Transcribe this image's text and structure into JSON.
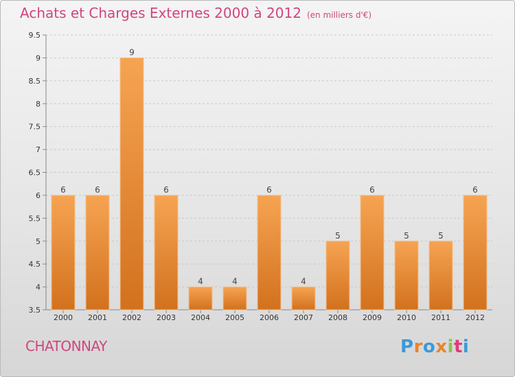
{
  "chart_data": {
    "type": "bar",
    "title": "Achats et Charges Externes 2000 à 2012",
    "subtitle": "(en milliers d'€)",
    "categories": [
      "2000",
      "2001",
      "2002",
      "2003",
      "2004",
      "2005",
      "2006",
      "2007",
      "2008",
      "2009",
      "2010",
      "2011",
      "2012"
    ],
    "values": [
      6,
      6,
      9,
      6,
      4,
      4,
      6,
      4,
      5,
      6,
      5,
      5,
      6
    ],
    "data_labels": [
      "6",
      "6",
      "9",
      "6",
      "4",
      "4",
      "6",
      "4",
      "5",
      "6",
      "5",
      "5",
      "6"
    ],
    "ylim": [
      3.5,
      9.5
    ],
    "yticks": [
      "3.5",
      "4",
      "4.5",
      "5",
      "5.5",
      "6",
      "6.5",
      "7",
      "7.5",
      "8",
      "8.5",
      "9",
      "9.5"
    ],
    "grid": "horizontal dashed",
    "bar_color": "#e8862a"
  },
  "footer": {
    "commune": "CHATONNAY",
    "logo_text": "Proxiti",
    "logo_colors": [
      "#3a9ad9",
      "#e8862a",
      "#3a9ad9",
      "#e8862a",
      "#8bc34a",
      "#e03c7a",
      "#3a9ad9"
    ]
  }
}
